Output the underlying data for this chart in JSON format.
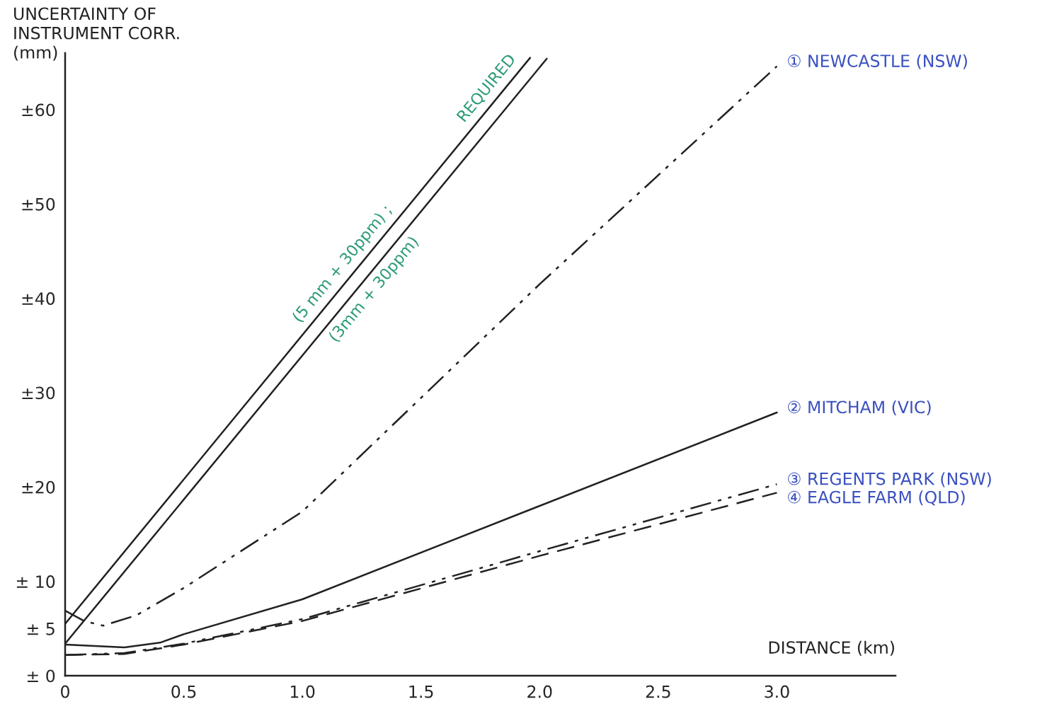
{
  "chart_data": {
    "type": "line",
    "ylabel": "UNCERTAINTY OF\nINSTRUMENT CORR.\n(mm)",
    "xlabel": "DISTANCE (km)",
    "xlim": [
      0,
      3.5
    ],
    "ylim": [
      0,
      66
    ],
    "xticks": [
      {
        "value": 0,
        "label": "0"
      },
      0.5,
      {
        "value": 1.0,
        "label": "1.0"
      },
      1.5,
      {
        "value": 2.0,
        "label": "2.0"
      },
      2.5,
      {
        "value": 3.0,
        "label": "3.0"
      }
    ],
    "yticks": [
      {
        "value": 0,
        "label": "± 0"
      },
      {
        "value": 5,
        "label": "± 5"
      },
      {
        "value": 10,
        "label": "± 10"
      },
      {
        "value": 20,
        "label": "±20"
      },
      {
        "value": 30,
        "label": "±30"
      },
      {
        "value": 40,
        "label": "±40"
      },
      {
        "value": 50,
        "label": "±50"
      },
      {
        "value": 60,
        "label": "±60"
      }
    ],
    "grid": false,
    "legend": false,
    "series": [
      {
        "name": "(5 mm + 30ppm) ;",
        "color": "#222222",
        "line_style": "solid",
        "x": [
          0,
          1.96
        ],
        "values": [
          5.5,
          65.5
        ]
      },
      {
        "name": "(3mm + 30ppm)",
        "color": "#222222",
        "line_style": "solid",
        "x": [
          0,
          2.03
        ],
        "values": [
          3.4,
          65.4
        ]
      },
      {
        "name": "① NEWCASTLE (NSW)",
        "color": "#222222",
        "line_style": "dashdot",
        "x": [
          0,
          0.08,
          0.16,
          0.3,
          0.5,
          1.0,
          2.0,
          3.0
        ],
        "values": [
          6.9,
          5.8,
          5.3,
          6.4,
          9.3,
          17.4,
          41.5,
          64.6
        ]
      },
      {
        "name": "② MITCHAM (VIC)",
        "color": "#222222",
        "line_style": "solid",
        "x": [
          0,
          0.25,
          0.4,
          0.5,
          1.0,
          2.0,
          3.0
        ],
        "values": [
          3.3,
          3.0,
          3.5,
          4.4,
          8.1,
          18,
          27.9
        ]
      },
      {
        "name": "③ REGENTS PARK (NSW)",
        "color": "#222222",
        "line_style": "dashdot",
        "x": [
          0,
          0.25,
          0.5,
          1.0,
          2.0,
          3.0
        ],
        "values": [
          2.2,
          2.4,
          3.4,
          6.0,
          13.2,
          20.3
        ]
      },
      {
        "name": "④ EAGLE FARM (QLD)",
        "color": "#222222",
        "line_style": "dashed",
        "x": [
          0,
          0.25,
          0.5,
          1.0,
          2.0,
          3.0
        ],
        "values": [
          2.2,
          2.3,
          3.3,
          5.8,
          12.7,
          19.4
        ]
      }
    ],
    "annotations": [
      "REQUIRED"
    ]
  }
}
